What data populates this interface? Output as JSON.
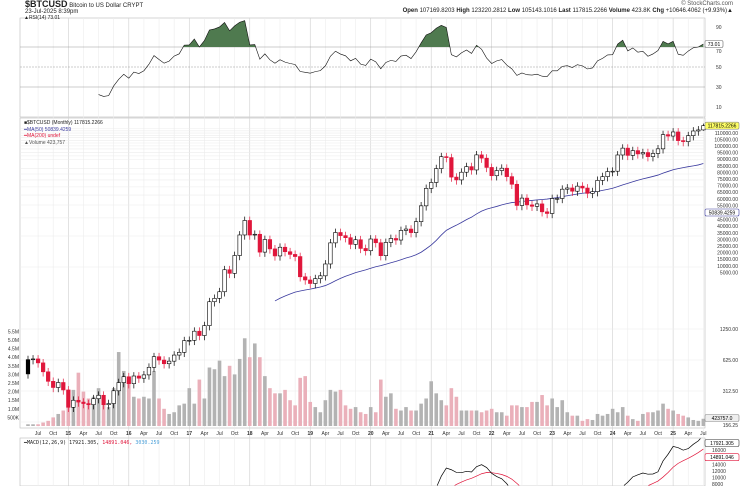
{
  "header": {
    "symbol": "$BTCUSD",
    "name": "Bitcoin to US Dollar",
    "exchange": "CRYPT",
    "date": "23-Jul-2025 8:39pm",
    "copyright": "© StockCharts.com",
    "open_label": "Open",
    "open": "107169.8203",
    "high_label": "High",
    "high": "123220.2812",
    "low_label": "Low",
    "low": "105143.1016",
    "last_label": "Last",
    "last": "117815.2266",
    "volume_label": "Volume",
    "volume": "423.8K",
    "chg_label": "Chg",
    "chg": "+10646.4062 (+9.93%)▲"
  },
  "legend": {
    "rsi": "▲RSI(14) 73.01",
    "price": "■$BTCUSD (Monthly) 117815.2266",
    "ma50": "━MA(50) 50839.4259",
    "ma200": "━MA(200) undef",
    "volume": "▲Volume 423,757",
    "macd": "━MACD(12,26,9) 17921.305,",
    "macd_signal": "14891.046,",
    "macd_hist": "3030.259"
  },
  "colors": {
    "up": "#000000",
    "down": "#e0163b",
    "vol_up": "#b3b3b3",
    "vol_down": "#eab0ba",
    "ma50": "#3a3a9e",
    "rsi_fill": "#4f7a4f",
    "macd": "#000000",
    "signal": "#e0163b",
    "hist_text": "#4a9fd8",
    "last_box": "#ffff66"
  },
  "chart_data": [
    {
      "type": "line",
      "panel": "RSI(14)",
      "period": 14,
      "value_label": "73.01",
      "ylim": [
        0,
        100
      ],
      "y_ticks": [
        "90",
        "70",
        "50",
        "30",
        "10"
      ],
      "levels": [
        70,
        50,
        30
      ]
    },
    {
      "type": "candlestick",
      "panel": "price",
      "interval": "Monthly",
      "x_start": "May 2014",
      "x_end": "Jul 2025",
      "scale": "log",
      "first_open": 458,
      "last_high": 123220.2812,
      "last_low": 105143.1016,
      "close": [
        630,
        640,
        586,
        480,
        388,
        338,
        378,
        320,
        217,
        254,
        244,
        236,
        230,
        263,
        284,
        230,
        236,
        314,
        377,
        430,
        368,
        437,
        416,
        448,
        531,
        673,
        624,
        575,
        609,
        698,
        742,
        963,
        970,
        1190,
        1080,
        1348,
        2300,
        2480,
        2875,
        4703,
        4338,
        6468,
        10233,
        14156,
        10221,
        10397,
        6973,
        9240,
        7494,
        6404,
        7780,
        7037,
        6625,
        6317,
        4017,
        3742,
        3457,
        3854,
        4105,
        5350,
        8574,
        10817,
        10085,
        9630,
        8293,
        9199,
        7569,
        7193,
        9350,
        8599,
        6438,
        8658,
        9461,
        9137,
        11323,
        11680,
        10784,
        13781,
        19625,
        29001,
        33114,
        45137,
        58918,
        57750,
        37332,
        35040,
        41626,
        47166,
        43790,
        61318,
        57005,
        46306,
        38483,
        43193,
        45538,
        37714,
        31792,
        19785,
        23336,
        20050,
        19431,
        20495,
        17168,
        16547,
        23139,
        23147,
        28478,
        29268,
        27219,
        30477,
        29230,
        25940,
        26967,
        34667,
        37712,
        42265,
        42582,
        61198,
        71333,
        60636,
        67491,
        62678,
        64619,
        58969,
        63329,
        70215,
        96449,
        93429,
        102405,
        84373,
        82548,
        94207,
        104638,
        107169,
        117815
      ],
      "volume_millions": [
        0.1,
        0.1,
        0.1,
        0.2,
        0.3,
        0.5,
        0.7,
        0.9,
        2.0,
        2.1,
        3.1,
        2.0,
        1.6,
        1.7,
        2.2,
        1.6,
        1.1,
        2.2,
        4.3,
        3.2,
        2.6,
        1.7,
        1.6,
        1.7,
        1.6,
        3.2,
        1.6,
        1.0,
        0.7,
        0.8,
        1.2,
        1.3,
        2.2,
        1.3,
        2.7,
        1.6,
        3.4,
        3.3,
        3.8,
        2.9,
        3.5,
        3.0,
        3.9,
        5.1,
        4.0,
        4.8,
        4.0,
        2.9,
        2.2,
        1.9,
        1.9,
        2.1,
        1.5,
        1.2,
        2.8,
        2.9,
        1.4,
        1.1,
        0.8,
        1.5,
        2.1,
        2.0,
        2.1,
        1.2,
        1.0,
        1.1,
        0.8,
        0.7,
        1.1,
        0.8,
        2.7,
        1.7,
        1.9,
        1.0,
        0.9,
        1.1,
        0.9,
        0.9,
        1.3,
        1.6,
        2.6,
        1.9,
        1.5,
        1.2,
        2.2,
        1.7,
        0.9,
        0.9,
        0.9,
        0.9,
        0.8,
        0.9,
        1.0,
        0.8,
        0.8,
        0.6,
        1.2,
        1.2,
        1.1,
        1.1,
        1.4,
        1.4,
        1.8,
        1.2,
        1.6,
        1.1,
        1.5,
        0.8,
        0.6,
        0.6,
        0.3,
        0.4,
        0.35,
        0.7,
        0.6,
        0.7,
        1.0,
        0.8,
        1.1,
        0.6,
        0.4,
        0.3,
        0.7,
        0.8,
        0.8,
        0.9,
        1.3,
        1.0,
        0.9,
        0.7,
        0.6,
        0.5,
        0.35,
        0.3,
        0.42
      ],
      "ma_period": 50,
      "last_value_label": "117815.2266",
      "ma50_value_label": "50839.4259",
      "volume_value_label": "423757.0",
      "price_ticks": [
        "156.25",
        "312.50",
        "625.00",
        "1250.00",
        "5000.00",
        "10000.00",
        "15000.00",
        "20000.00",
        "25000.00",
        "30000.00",
        "35000.00",
        "40000.00",
        "45000.00",
        "55000.00",
        "60000.00",
        "65000.00",
        "70000.00",
        "75000.00",
        "80000.00",
        "85000.00",
        "90000.00",
        "95000.00",
        "100000.00",
        "105000.00",
        "110000.00"
      ],
      "volume_ticks": [
        "500K",
        "1.0M",
        "1.5M",
        "2.0M",
        "2.5M",
        "3.0M",
        "3.5M",
        "4.0M",
        "4.5M",
        "5.0M",
        "5.5M"
      ],
      "x_ticks": [
        "Jul",
        "Oct",
        "15",
        "Apr",
        "Jul",
        "Oct",
        "16",
        "Apr",
        "Jul",
        "Oct",
        "17",
        "Apr",
        "Jul",
        "Oct",
        "18",
        "Apr",
        "Jul",
        "Oct",
        "19",
        "Apr",
        "Jul",
        "Oct",
        "20",
        "Apr",
        "Jul",
        "Oct",
        "21",
        "Apr",
        "Jul",
        "Oct",
        "22",
        "Apr",
        "Jul",
        "Oct",
        "23",
        "Apr",
        "Jul",
        "Oct",
        "24",
        "Apr",
        "Jul",
        "Oct",
        "25",
        "Apr",
        "Jul"
      ]
    },
    {
      "type": "line",
      "panel": "MACD(12,26,9)",
      "params": [
        12,
        26,
        9
      ],
      "macd_label": "17921.305",
      "signal_label": "14891.046",
      "y_ticks": [
        "16000",
        "14000",
        "12000",
        "10000",
        "8000"
      ]
    }
  ]
}
